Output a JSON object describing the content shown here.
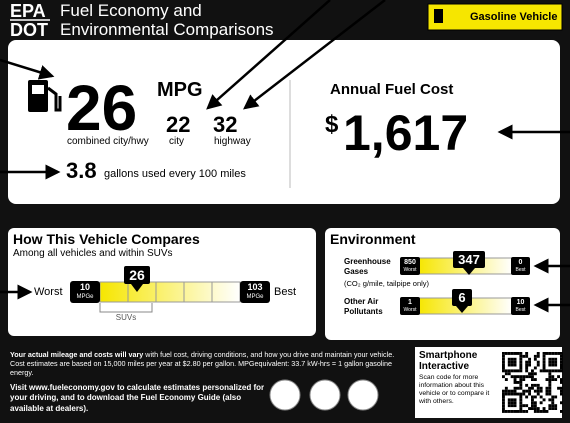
{
  "header": {
    "agency_top": "EPA",
    "agency_bottom": "DOT",
    "title_line1": "Fuel Economy and",
    "title_line2": "Environmental Comparisons",
    "vehicle_type": "Gasoline Vehicle"
  },
  "fuel_economy": {
    "mpg": "26",
    "mpg_unit": "MPG",
    "combined_label": "combined city/hwy",
    "city": "22",
    "city_label": "city",
    "highway": "32",
    "highway_label": "highway",
    "gallons": "3.8",
    "gallons_label": "gallons used every 100 miles"
  },
  "annual_fuel_cost": {
    "title": "Annual Fuel Cost",
    "currency": "$",
    "amount": "1,617"
  },
  "compare": {
    "title": "How This Vehicle Compares",
    "subtitle": "Among all vehicles and within SUVs",
    "worst_label": "Worst",
    "best_label": "Best",
    "worst_value": "10",
    "best_value": "103",
    "unit": "MPGe",
    "marker": "26",
    "class_label": "SUVs"
  },
  "environment": {
    "title": "Environment",
    "ghg_label_1": "Greenhouse",
    "ghg_label_2": "Gases",
    "ghg_note": "(CO₂ g/mile, tailpipe only)",
    "ghg_worst": "850",
    "ghg_best": "0",
    "ghg_marker": "347",
    "air_label_1": "Other Air",
    "air_label_2": "Pollutants",
    "air_worst": "1",
    "air_best": "10",
    "air_marker": "6",
    "worst_word": "Worst",
    "best_word": "Best"
  },
  "footer": {
    "disclaimer_bold": "Your actual mileage and costs will vary",
    "disclaimer_text": " with fuel cost, driving conditions, and how you drive and maintain your vehicle. Cost estimates are based on 15,000 miles per year at $2.80 per gallon. MPGequivalent: 33.7 kW-hrs = 1 gallon gasoline energy.",
    "visit": "Visit www.fueleconomy.gov to calculate estimates personalized for your driving, and to download the Fuel Economy Guide (also available at dealers).",
    "smartphone_title_1": "Smartphone",
    "smartphone_title_2": "Interactive",
    "smartphone_text": "Scan code for more information about this vehicle or to compare it with others."
  }
}
